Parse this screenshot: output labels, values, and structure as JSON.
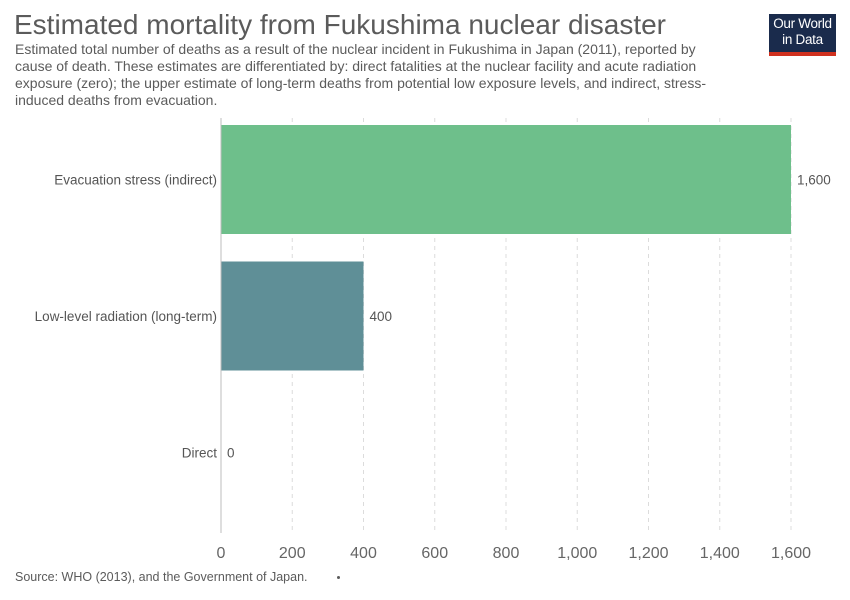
{
  "title": "Estimated mortality from Fukushima nuclear disaster",
  "subtitle": "Estimated total number of deaths as a result of the nuclear incident in Fukushima in Japan (2011), reported by cause of death. These estimates are differentiated by: direct fatalities at the nuclear facility and acute radiation exposure (zero); the upper estimate of long-term deaths from potential low exposure levels, and indirect, stress-induced deaths from evacuation.",
  "logo": {
    "line1": "Our World",
    "line2": "in Data",
    "background": "#1a2b4c",
    "accent": "#d0311f"
  },
  "source": "Source: WHO (2013), and the Government of Japan.",
  "chart_data": {
    "type": "bar",
    "orientation": "horizontal",
    "categories": [
      "Evacuation stress (indirect)",
      "Low-level radiation (long-term)",
      "Direct"
    ],
    "values": [
      1600,
      400,
      0
    ],
    "value_labels": [
      "1,600",
      "400",
      "0"
    ],
    "colors": [
      "#6ebf8b",
      "#5f8f97",
      "#5f8f97"
    ],
    "xlim": [
      0,
      1600
    ],
    "xticks": [
      0,
      200,
      400,
      600,
      800,
      1000,
      1200,
      1400,
      1600
    ],
    "xtick_labels": [
      "0",
      "200",
      "400",
      "600",
      "800",
      "1,000",
      "1,200",
      "1,400",
      "1,600"
    ],
    "grid": "vertical dashed",
    "legend": "none"
  }
}
